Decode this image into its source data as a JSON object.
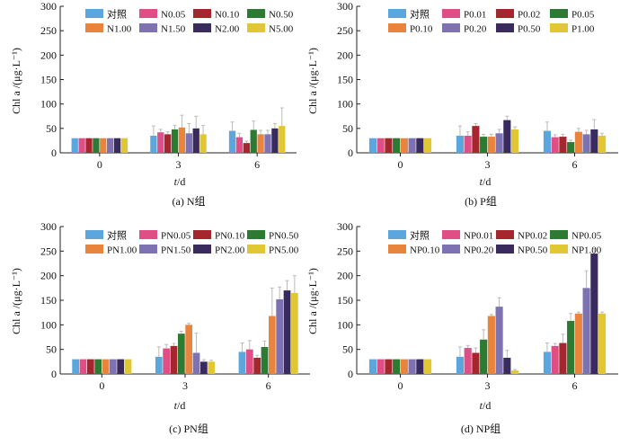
{
  "chart_data": [
    {
      "type": "bar",
      "caption": "(a)  N组",
      "xlabel_italic": "t",
      "xlabel_rest": "/d",
      "ylabel": "Chl a /(μg·L⁻¹)",
      "ylim": [
        0,
        300
      ],
      "yticks": [
        0,
        50,
        100,
        150,
        200,
        250,
        300
      ],
      "categories": [
        "0",
        "3",
        "6"
      ],
      "series": [
        {
          "name": "对照",
          "color": "#5BA7DD",
          "values": [
            30,
            35,
            45
          ],
          "errors": [
            0,
            20,
            18
          ]
        },
        {
          "name": "N0.05",
          "color": "#E04E86",
          "values": [
            30,
            42,
            32
          ],
          "errors": [
            0,
            6,
            8
          ]
        },
        {
          "name": "N0.10",
          "color": "#A5262D",
          "values": [
            30,
            38,
            20
          ],
          "errors": [
            0,
            5,
            4
          ]
        },
        {
          "name": "N0.50",
          "color": "#2D7A33",
          "values": [
            30,
            48,
            47
          ],
          "errors": [
            0,
            8,
            18
          ]
        },
        {
          "name": "N1.00",
          "color": "#E9843D",
          "values": [
            30,
            52,
            38
          ],
          "errors": [
            0,
            25,
            8
          ]
        },
        {
          "name": "N1.50",
          "color": "#7F72B3",
          "values": [
            30,
            40,
            38
          ],
          "errors": [
            0,
            20,
            8
          ]
        },
        {
          "name": "N2.00",
          "color": "#3A2B5F",
          "values": [
            30,
            50,
            50
          ],
          "errors": [
            0,
            25,
            10
          ]
        },
        {
          "name": "N5.00",
          "color": "#E2C734",
          "values": [
            30,
            38,
            55
          ],
          "errors": [
            0,
            18,
            37
          ]
        }
      ]
    },
    {
      "type": "bar",
      "caption": "(b)  P组",
      "xlabel_italic": "t",
      "xlabel_rest": "/d",
      "ylabel": "Chl a /(μg·L⁻¹)",
      "ylim": [
        0,
        300
      ],
      "yticks": [
        0,
        50,
        100,
        150,
        200,
        250,
        300
      ],
      "categories": [
        "0",
        "3",
        "6"
      ],
      "series": [
        {
          "name": "对照",
          "color": "#5BA7DD",
          "values": [
            30,
            35,
            45
          ],
          "errors": [
            0,
            20,
            18
          ]
        },
        {
          "name": "P0.01",
          "color": "#E04E86",
          "values": [
            30,
            35,
            32
          ],
          "errors": [
            0,
            8,
            5
          ]
        },
        {
          "name": "P0.02",
          "color": "#A5262D",
          "values": [
            30,
            55,
            33
          ],
          "errors": [
            0,
            5,
            5
          ]
        },
        {
          "name": "P0.05",
          "color": "#2D7A33",
          "values": [
            30,
            33,
            22
          ],
          "errors": [
            0,
            5,
            4
          ]
        },
        {
          "name": "P0.10",
          "color": "#E9843D",
          "values": [
            30,
            33,
            43
          ],
          "errors": [
            0,
            5,
            7
          ]
        },
        {
          "name": "P0.20",
          "color": "#7F72B3",
          "values": [
            30,
            40,
            38
          ],
          "errors": [
            0,
            8,
            8
          ]
        },
        {
          "name": "P0.50",
          "color": "#3A2B5F",
          "values": [
            30,
            67,
            48
          ],
          "errors": [
            0,
            8,
            20
          ]
        },
        {
          "name": "P1.00",
          "color": "#E2C734",
          "values": [
            30,
            48,
            35
          ],
          "errors": [
            0,
            5,
            5
          ]
        }
      ]
    },
    {
      "type": "bar",
      "caption": "(c)  PN组",
      "xlabel_italic": "t",
      "xlabel_rest": "/d",
      "ylabel": "Chl a /(μg·L⁻¹)",
      "ylim": [
        0,
        300
      ],
      "yticks": [
        0,
        50,
        100,
        150,
        200,
        250,
        300
      ],
      "categories": [
        "0",
        "3",
        "6"
      ],
      "series": [
        {
          "name": "对照",
          "color": "#5BA7DD",
          "values": [
            30,
            35,
            45
          ],
          "errors": [
            0,
            20,
            18
          ]
        },
        {
          "name": "PN0.05",
          "color": "#E04E86",
          "values": [
            30,
            52,
            50
          ],
          "errors": [
            0,
            8,
            18
          ]
        },
        {
          "name": "PN0.10",
          "color": "#A5262D",
          "values": [
            30,
            57,
            33
          ],
          "errors": [
            0,
            5,
            5
          ]
        },
        {
          "name": "PN0.50",
          "color": "#2D7A33",
          "values": [
            30,
            82,
            55
          ],
          "errors": [
            0,
            5,
            12
          ]
        },
        {
          "name": "PN1.00",
          "color": "#E9843D",
          "values": [
            30,
            100,
            118
          ],
          "errors": [
            0,
            3,
            57
          ]
        },
        {
          "name": "PN1.50",
          "color": "#7F72B3",
          "values": [
            30,
            43,
            152
          ],
          "errors": [
            0,
            40,
            25
          ]
        },
        {
          "name": "PN2.00",
          "color": "#3A2B5F",
          "values": [
            30,
            25,
            170
          ],
          "errors": [
            0,
            4,
            20
          ]
        },
        {
          "name": "PN5.00",
          "color": "#E2C734",
          "values": [
            30,
            25,
            165
          ],
          "errors": [
            0,
            3,
            35
          ]
        }
      ]
    },
    {
      "type": "bar",
      "caption": "(d)  NP组",
      "xlabel_italic": "t",
      "xlabel_rest": "/d",
      "ylabel": "Chl a /(μg·L⁻¹)",
      "ylim": [
        0,
        300
      ],
      "yticks": [
        0,
        50,
        100,
        150,
        200,
        250,
        300
      ],
      "categories": [
        "0",
        "3",
        "6"
      ],
      "series": [
        {
          "name": "对照",
          "color": "#5BA7DD",
          "values": [
            30,
            35,
            45
          ],
          "errors": [
            0,
            20,
            18
          ]
        },
        {
          "name": "NP0.01",
          "color": "#E04E86",
          "values": [
            30,
            53,
            57
          ],
          "errors": [
            0,
            5,
            5
          ]
        },
        {
          "name": "NP0.02",
          "color": "#A5262D",
          "values": [
            30,
            43,
            63
          ],
          "errors": [
            0,
            10,
            18
          ]
        },
        {
          "name": "NP0.05",
          "color": "#2D7A33",
          "values": [
            30,
            70,
            108
          ],
          "errors": [
            0,
            20,
            15
          ]
        },
        {
          "name": "NP0.10",
          "color": "#E9843D",
          "values": [
            30,
            118,
            123
          ],
          "errors": [
            0,
            3,
            3
          ]
        },
        {
          "name": "NP0.20",
          "color": "#7F72B3",
          "values": [
            30,
            137,
            175
          ],
          "errors": [
            0,
            18,
            35
          ]
        },
        {
          "name": "NP0.50",
          "color": "#3A2B5F",
          "values": [
            30,
            33,
            245
          ],
          "errors": [
            0,
            15,
            10
          ]
        },
        {
          "name": "NP1.00",
          "color": "#E2C734",
          "values": [
            30,
            7,
            123
          ],
          "errors": [
            0,
            2,
            3
          ]
        }
      ]
    }
  ]
}
